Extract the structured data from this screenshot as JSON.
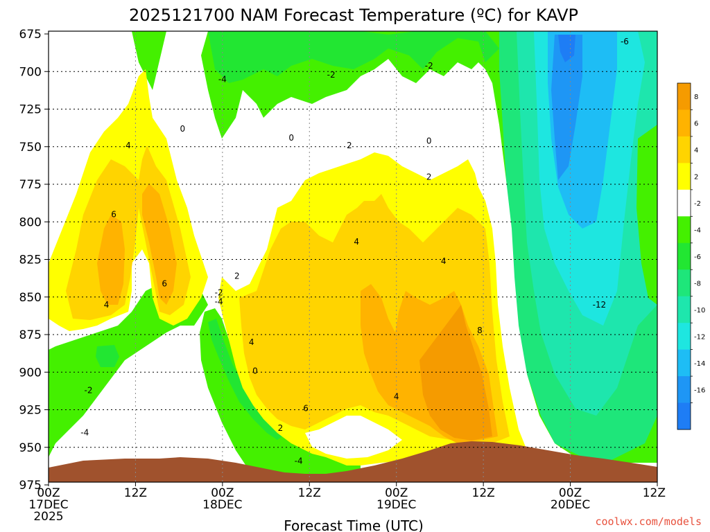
{
  "chart_data": {
    "type": "heatmap",
    "title": "2025121700 NAM Forecast Temperature (ºC) for KAVP",
    "xlabel": "Forecast Time (UTC)",
    "ylabel": "",
    "y_axis": {
      "ticks": [
        "675",
        "700",
        "725",
        "750",
        "775",
        "800",
        "825",
        "850",
        "875",
        "900",
        "925",
        "950",
        "975"
      ],
      "range": [
        675,
        975
      ],
      "inverted": true
    },
    "x_axis": {
      "ticks": [
        {
          "hour": 0,
          "line1": "00Z",
          "line2": "17DEC",
          "line3": "2025"
        },
        {
          "hour": 12,
          "line1": "12Z",
          "line2": "",
          "line3": ""
        },
        {
          "hour": 24,
          "line1": "00Z",
          "line2": "18DEC",
          "line3": ""
        },
        {
          "hour": 36,
          "line1": "12Z",
          "line2": "",
          "line3": ""
        },
        {
          "hour": 48,
          "line1": "00Z",
          "line2": "19DEC",
          "line3": ""
        },
        {
          "hour": 60,
          "line1": "12Z",
          "line2": "",
          "line3": ""
        },
        {
          "hour": 72,
          "line1": "00Z",
          "line2": "20DEC",
          "line3": ""
        },
        {
          "hour": 84,
          "line1": "12Z",
          "line2": "",
          "line3": ""
        }
      ],
      "range": [
        0,
        84
      ]
    },
    "grid": true,
    "colorbar": {
      "position": "right",
      "labels": [
        "8",
        "6",
        "4",
        "2",
        "-2",
        "-4",
        "-6",
        "-8",
        "-10",
        "-12",
        "-14",
        "-16"
      ],
      "colors": [
        "#f59b00",
        "#ffb300",
        "#ffd400",
        "#ffff00",
        "#ffffff",
        "#44f000",
        "#22e632",
        "#1ee67a",
        "#1ee6ad",
        "#1ee6e0",
        "#1ebdf5",
        "#1e96f5",
        "#1e7df5"
      ]
    },
    "contour_labels": [
      {
        "text": "-4",
        "hour": 24.0,
        "p": 707
      },
      {
        "text": "-2",
        "hour": 39.0,
        "p": 704
      },
      {
        "text": "-2",
        "hour": 52.5,
        "p": 698
      },
      {
        "text": "-6",
        "hour": 79.5,
        "p": 682
      },
      {
        "text": "0",
        "hour": 18.5,
        "p": 740
      },
      {
        "text": "0",
        "hour": 33.5,
        "p": 746
      },
      {
        "text": "0",
        "hour": 52.5,
        "p": 748
      },
      {
        "text": "4",
        "hour": 11.0,
        "p": 751
      },
      {
        "text": "2",
        "hour": 41.5,
        "p": 751
      },
      {
        "text": "2",
        "hour": 52.5,
        "p": 772
      },
      {
        "text": "6",
        "hour": 9.0,
        "p": 797
      },
      {
        "text": "4",
        "hour": 42.5,
        "p": 815
      },
      {
        "text": "4",
        "hour": 54.5,
        "p": 828
      },
      {
        "text": "2",
        "hour": 26.0,
        "p": 838
      },
      {
        "text": "6",
        "hour": 16.0,
        "p": 843
      },
      {
        "text": "-2",
        "hour": 23.5,
        "p": 849
      },
      {
        "text": "-4",
        "hour": 23.5,
        "p": 855
      },
      {
        "text": "4",
        "hour": 8.0,
        "p": 857
      },
      {
        "text": "-12",
        "hour": 76.0,
        "p": 857
      },
      {
        "text": "8",
        "hour": 59.5,
        "p": 874
      },
      {
        "text": "4",
        "hour": 28.0,
        "p": 882
      },
      {
        "text": "0",
        "hour": 28.5,
        "p": 901
      },
      {
        "text": "-2",
        "hour": 5.5,
        "p": 914
      },
      {
        "text": "4",
        "hour": 48.0,
        "p": 918
      },
      {
        "text": "6",
        "hour": 35.5,
        "p": 926
      },
      {
        "text": "-4",
        "hour": 5.0,
        "p": 942
      },
      {
        "text": "2",
        "hour": 32.0,
        "p": 939
      },
      {
        "text": "-4",
        "hour": 34.5,
        "p": 961
      }
    ]
  },
  "credit": "coolwx.com/models"
}
